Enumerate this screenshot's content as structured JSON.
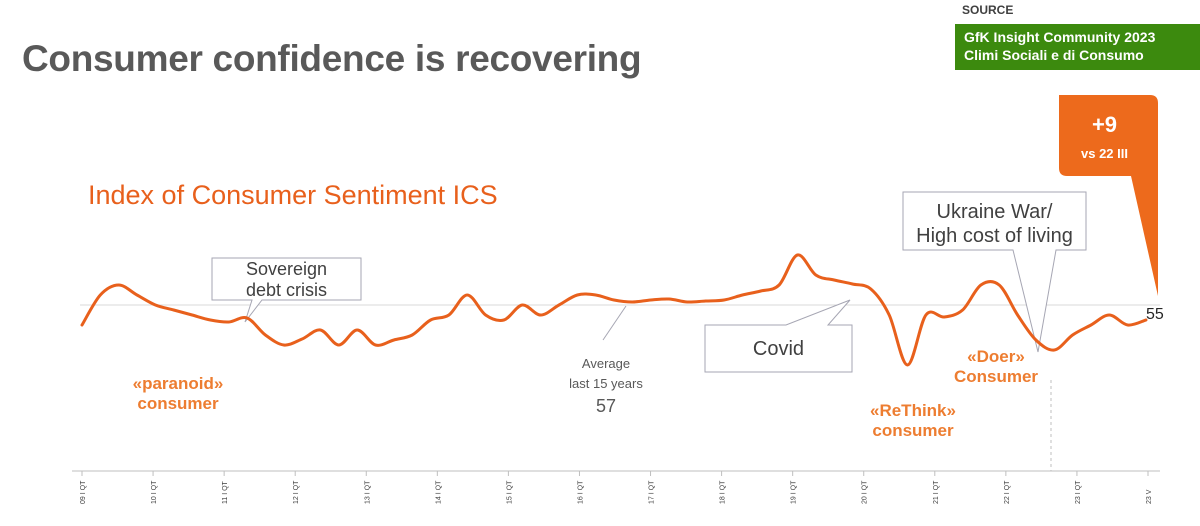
{
  "title": "Consumer confidence is recovering",
  "source": {
    "label": "SOURCE",
    "line1": "GfK Insight Community 2023",
    "line2": "Climi Sociali e di Consumo"
  },
  "chart_data": {
    "type": "line",
    "title": "Index of Consumer Sentiment ICS",
    "x_tick_labels": [
      "09 I QT",
      "10 I QT",
      "11 I QT",
      "12 I QT",
      "13 I QT",
      "14 I QT",
      "15 I QT",
      "16 I QT",
      "17 I QT",
      "18 I QT",
      "19 I QT",
      "20 I QT",
      "21 I QT",
      "22 I QT",
      "23 I QT",
      "23 V"
    ],
    "average": {
      "label_line1": "Average",
      "label_line2": "last 15 years",
      "value": 57
    },
    "last_value": 55,
    "series": [
      {
        "values": [
          55,
          58,
          59,
          58,
          57,
          56.5,
          56,
          55.5,
          55.3,
          55.7,
          54,
          53,
          53.6,
          54.5,
          53,
          54.5,
          53,
          53.5,
          54,
          55.5,
          56,
          58,
          56,
          55.5,
          57,
          56,
          57,
          58,
          58,
          57.5,
          57.3,
          57.5,
          57.6,
          57.3,
          57.4,
          57.5,
          58,
          58.4,
          59,
          62,
          60,
          59.5,
          59.1,
          58.6,
          56,
          51,
          56,
          55.8,
          56.5,
          59,
          59,
          56,
          53.5,
          52.5,
          54,
          55,
          56,
          55,
          55.5
        ]
      }
    ],
    "ylim": [
      48,
      65
    ],
    "colors": {
      "line": "#e8601c",
      "average_line": "#d9d9d9",
      "callout_border": "#a6a6b3",
      "highlight": "#ed6a1c"
    }
  },
  "callouts": {
    "sovereign_line1": "Sovereign",
    "sovereign_line2": "debt crisis",
    "covid": "Covid",
    "ukraine_line1": "Ukraine War/",
    "ukraine_line2": "High cost of living"
  },
  "phases": {
    "paranoid_line1": "«paranoid»",
    "paranoid_line2": "consumer",
    "rethink_line1": "«ReThink»",
    "rethink_line2": "consumer",
    "doer_line1": "«Doer»",
    "doer_line2": "Consumer"
  },
  "highlight": {
    "delta": "+9",
    "compare": "vs 22 III"
  }
}
